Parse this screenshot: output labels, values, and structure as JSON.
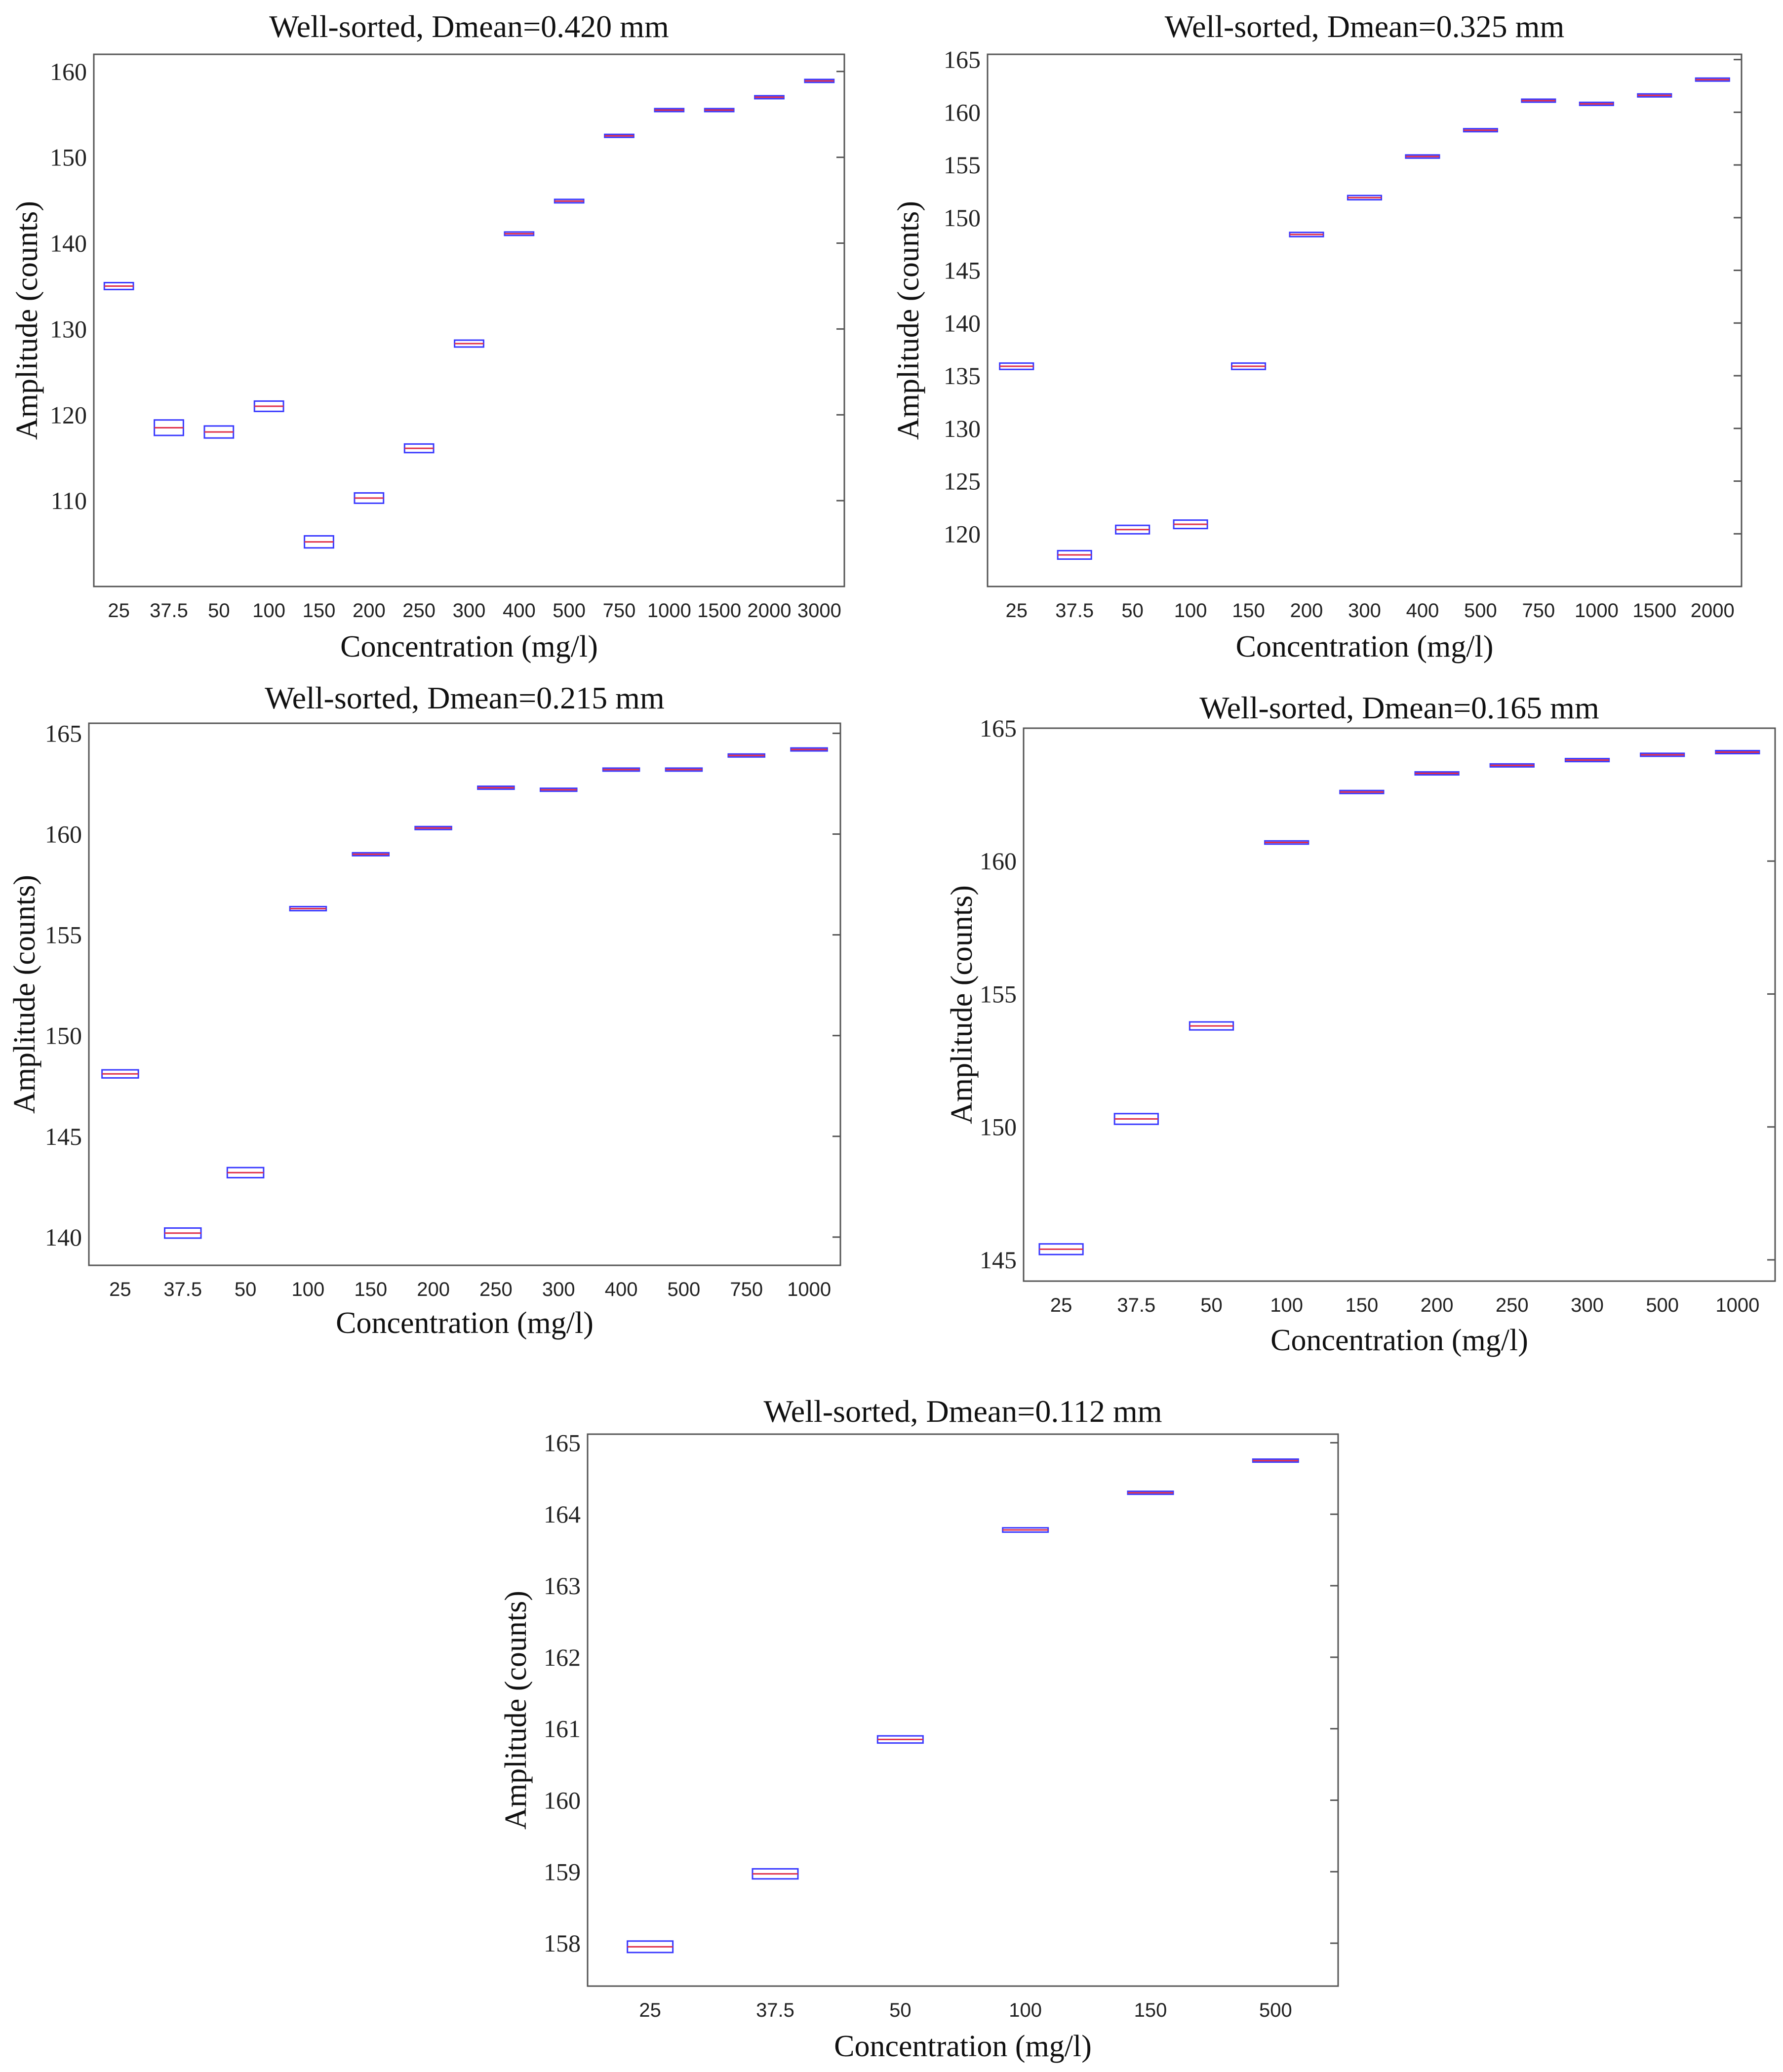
{
  "chart_data": [
    {
      "type": "box",
      "title": "Well-sorted, Dmean=0.420 mm",
      "xlabel": "Concentration (mg/l)",
      "ylabel": "Amplitude (counts)",
      "categories": [
        "25",
        "37.5",
        "50",
        "100",
        "150",
        "200",
        "250",
        "300",
        "400",
        "500",
        "750",
        "1000",
        "1500",
        "2000",
        "3000"
      ],
      "values": [
        135.0,
        118.5,
        118.0,
        121.0,
        105.2,
        110.3,
        116.1,
        128.3,
        141.1,
        144.9,
        152.5,
        155.5,
        155.5,
        157.0,
        158.9
      ],
      "spread": [
        0.4,
        0.9,
        0.7,
        0.6,
        0.7,
        0.6,
        0.5,
        0.4,
        0.2,
        0.2,
        0.15,
        0.15,
        0.1,
        0.1,
        0.1
      ],
      "ylim": [
        100,
        162
      ],
      "yticks": [
        110,
        120,
        130,
        140,
        150,
        160
      ]
    },
    {
      "type": "box",
      "title": "Well-sorted, Dmean=0.325 mm",
      "xlabel": "Concentration (mg/l)",
      "ylabel": "Amplitude (counts)",
      "categories": [
        "25",
        "37.5",
        "50",
        "100",
        "150",
        "200",
        "300",
        "400",
        "500",
        "750",
        "1000",
        "1500",
        "2000"
      ],
      "values": [
        135.9,
        118.0,
        120.4,
        120.9,
        135.9,
        148.4,
        151.9,
        155.8,
        158.3,
        161.1,
        160.8,
        161.6,
        163.1
      ],
      "spread": [
        0.3,
        0.4,
        0.4,
        0.4,
        0.3,
        0.2,
        0.2,
        0.15,
        0.1,
        0.05,
        0.05,
        0.05,
        0.05
      ],
      "ylim": [
        115,
        165.5
      ],
      "yticks": [
        120,
        125,
        130,
        135,
        140,
        145,
        150,
        155,
        160,
        165
      ]
    },
    {
      "type": "box",
      "title": "Well-sorted, Dmean=0.215 mm",
      "xlabel": "Concentration (mg/l)",
      "ylabel": "Amplitude (counts)",
      "categories": [
        "25",
        "37.5",
        "50",
        "100",
        "150",
        "200",
        "250",
        "300",
        "400",
        "500",
        "750",
        "1000"
      ],
      "values": [
        148.1,
        140.2,
        143.2,
        156.3,
        159.0,
        160.3,
        162.3,
        162.2,
        163.2,
        163.2,
        163.9,
        164.2
      ],
      "spread": [
        0.2,
        0.25,
        0.25,
        0.1,
        0.07,
        0.07,
        0.05,
        0.05,
        0.05,
        0.05,
        0.05,
        0.05
      ],
      "ylim": [
        138.6,
        165.5
      ],
      "yticks": [
        140,
        145,
        150,
        155,
        160,
        165
      ]
    },
    {
      "type": "box",
      "title": "Well-sorted, Dmean=0.165 mm",
      "xlabel": "Concentration (mg/l)",
      "ylabel": "Amplitude (counts)",
      "categories": [
        "25",
        "37.5",
        "50",
        "100",
        "150",
        "200",
        "250",
        "300",
        "500",
        "1000"
      ],
      "values": [
        145.4,
        150.3,
        153.8,
        160.7,
        162.6,
        163.3,
        163.6,
        163.8,
        164.0,
        164.1
      ],
      "spread": [
        0.2,
        0.2,
        0.15,
        0.06,
        0.05,
        0.05,
        0.05,
        0.05,
        0.04,
        0.04
      ],
      "ylim": [
        144.2,
        165.0
      ],
      "yticks": [
        145,
        150,
        155,
        160,
        165
      ]
    },
    {
      "type": "box",
      "title": "Well-sorted, Dmean=0.112 mm",
      "xlabel": "Concentration (mg/l)",
      "ylabel": "Amplitude (counts)",
      "categories": [
        "25",
        "37.5",
        "50",
        "100",
        "150",
        "500"
      ],
      "values": [
        157.95,
        158.97,
        160.85,
        163.78,
        164.3,
        164.75
      ],
      "spread": [
        0.08,
        0.07,
        0.05,
        0.03,
        0.02,
        0.02
      ],
      "ylim": [
        157.4,
        165.12
      ],
      "yticks": [
        158,
        159,
        160,
        161,
        162,
        163,
        164,
        165
      ]
    }
  ],
  "colors": {
    "box_edge": "#3a3aff",
    "median": "#e0304a",
    "frame": "#555555",
    "text": "#111111"
  }
}
